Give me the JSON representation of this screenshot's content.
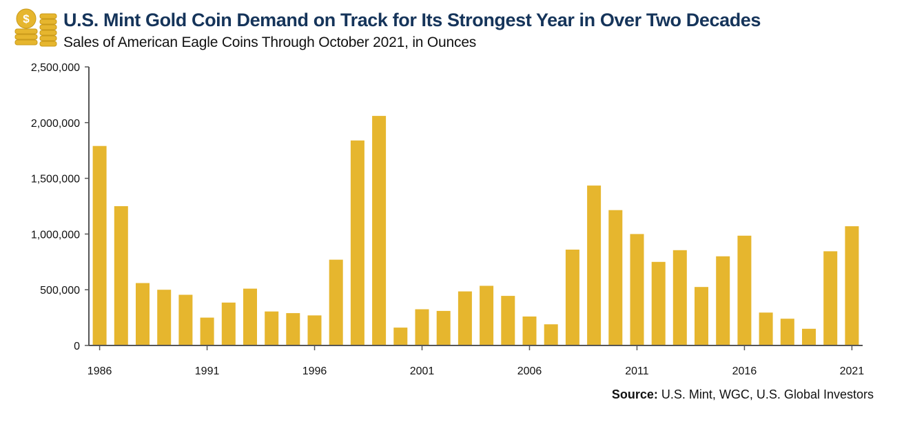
{
  "header": {
    "title": "U.S. Mint Gold Coin Demand on Track for Its Strongest Year in Over Two Decades",
    "subtitle": "Sales of American Eagle Coins Through October 2021, in Ounces",
    "logo_icon": "gold-coin-stack-icon",
    "logo_symbol": "$"
  },
  "source": {
    "label": "Source:",
    "text": " U.S. Mint, WGC, U.S. Global Investors"
  },
  "colors": {
    "bar": "#e6b62e",
    "title": "#15345a",
    "axis": "#555555"
  },
  "chart_data": {
    "type": "bar",
    "categories": [
      "1986",
      "1987",
      "1988",
      "1989",
      "1990",
      "1991",
      "1992",
      "1993",
      "1994",
      "1995",
      "1996",
      "1997",
      "1998",
      "1999",
      "2000",
      "2001",
      "2002",
      "2003",
      "2004",
      "2005",
      "2006",
      "2007",
      "2008",
      "2009",
      "2010",
      "2011",
      "2012",
      "2013",
      "2014",
      "2015",
      "2016",
      "2017",
      "2018",
      "2019",
      "2020",
      "2021"
    ],
    "values": [
      1790000,
      1250000,
      560000,
      500000,
      455000,
      250000,
      385000,
      510000,
      305000,
      290000,
      270000,
      770000,
      1840000,
      2060000,
      160000,
      325000,
      310000,
      485000,
      535000,
      445000,
      260000,
      190000,
      860000,
      1435000,
      1215000,
      1000000,
      750000,
      855000,
      525000,
      800000,
      985000,
      295000,
      240000,
      150000,
      845000,
      1070000
    ],
    "ylim": [
      0,
      2500000
    ],
    "yticks": [
      0,
      500000,
      1000000,
      1500000,
      2000000,
      2500000
    ],
    "ytick_labels": [
      "0",
      "500,000",
      "1,000,000",
      "1,500,000",
      "2,000,000",
      "2,500,000"
    ],
    "xtick_labels": [
      "1986",
      "1991",
      "1996",
      "2001",
      "2006",
      "2011",
      "2016",
      "2021"
    ],
    "xlabel": "",
    "ylabel": "",
    "grid": false,
    "legend": "none"
  }
}
